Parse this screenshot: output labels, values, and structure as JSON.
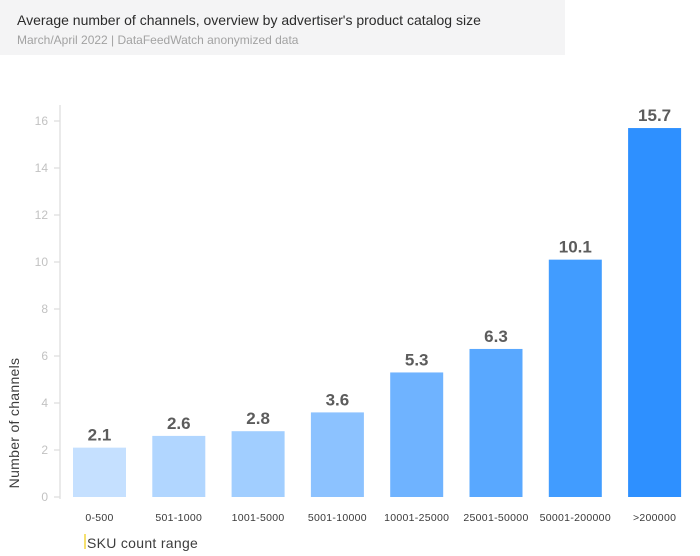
{
  "chart_data": {
    "type": "bar",
    "title": "Average number of channels, overview by advertiser's product catalog size",
    "subtitle": "March/April 2022 | DataFeedWatch anonymized data",
    "xlabel": "SKU count range",
    "ylabel": "Number of channels",
    "categories": [
      "0-500",
      "501-1000",
      "1001-5000",
      "5001-10000",
      "10001-25000",
      "25001-50000",
      "50001-200000",
      ">200000"
    ],
    "values": [
      2.1,
      2.6,
      2.8,
      3.6,
      5.3,
      6.3,
      10.1,
      15.7
    ],
    "value_labels": [
      "2.1",
      "2.6",
      "2.8",
      "3.6",
      "5.3",
      "6.3",
      "10.1",
      "15.7"
    ],
    "ylim": [
      0,
      16
    ],
    "yticks": [
      0,
      2,
      4,
      6,
      8,
      10,
      12,
      14,
      16
    ],
    "grid": false,
    "bar_colors": [
      "#c5e0ff",
      "#b1d6ff",
      "#a1ceff",
      "#8cc2ff",
      "#6fb3ff",
      "#59a8ff",
      "#419cff",
      "#2e90ff"
    ],
    "axis_color": "#dcdcdc"
  }
}
